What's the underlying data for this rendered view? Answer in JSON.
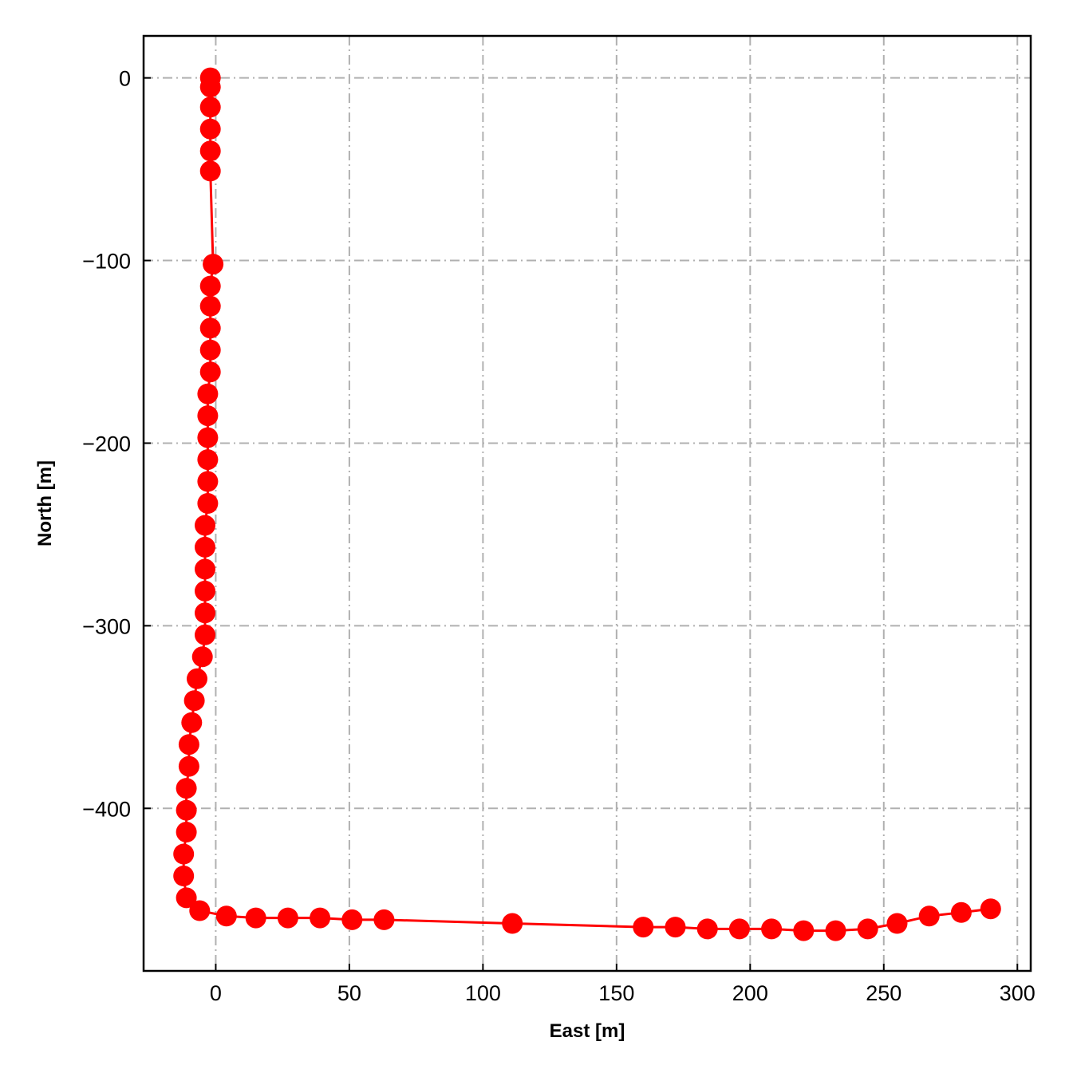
{
  "chart_data": {
    "type": "line",
    "title": "",
    "xlabel": "East [m]",
    "ylabel": "North [m]",
    "xlim": [
      -27,
      305
    ],
    "ylim": [
      -489,
      23
    ],
    "xticks": [
      0,
      50,
      100,
      150,
      200,
      250,
      300
    ],
    "yticks": [
      0,
      -100,
      -200,
      -300,
      -400
    ],
    "xtick_labels": [
      "0",
      "50",
      "100",
      "150",
      "200",
      "250",
      "300"
    ],
    "ytick_labels": [
      "0",
      "−100",
      "−200",
      "−300",
      "−400"
    ],
    "grid": true,
    "legend": "none",
    "series": [
      {
        "color": "#ff0000",
        "marker": "circle",
        "points": [
          [
            -2,
            0
          ],
          [
            -2,
            -5
          ],
          [
            -2,
            -16
          ],
          [
            -2,
            -28
          ],
          [
            -2,
            -40
          ],
          [
            -2,
            -51
          ],
          [
            -1,
            -102
          ],
          [
            -2,
            -114
          ],
          [
            -2,
            -125
          ],
          [
            -2,
            -137
          ],
          [
            -2,
            -149
          ],
          [
            -2,
            -161
          ],
          [
            -3,
            -173
          ],
          [
            -3,
            -185
          ],
          [
            -3,
            -197
          ],
          [
            -3,
            -209
          ],
          [
            -3,
            -221
          ],
          [
            -3,
            -233
          ],
          [
            -4,
            -245
          ],
          [
            -4,
            -257
          ],
          [
            -4,
            -269
          ],
          [
            -4,
            -281
          ],
          [
            -4,
            -293
          ],
          [
            -4,
            -305
          ],
          [
            -5,
            -317
          ],
          [
            -7,
            -329
          ],
          [
            -8,
            -341
          ],
          [
            -9,
            -353
          ],
          [
            -10,
            -365
          ],
          [
            -10,
            -377
          ],
          [
            -11,
            -389
          ],
          [
            -11,
            -401
          ],
          [
            -11,
            -413
          ],
          [
            -12,
            -425
          ],
          [
            -12,
            -437
          ],
          [
            -11,
            -449
          ],
          [
            -6,
            -456
          ],
          [
            4,
            -459
          ],
          [
            15,
            -460
          ],
          [
            27,
            -460
          ],
          [
            39,
            -460
          ],
          [
            51,
            -461
          ],
          [
            63,
            -461
          ],
          [
            111,
            -463
          ],
          [
            160,
            -465
          ],
          [
            172,
            -465
          ],
          [
            184,
            -466
          ],
          [
            196,
            -466
          ],
          [
            208,
            -466
          ],
          [
            220,
            -467
          ],
          [
            232,
            -467
          ],
          [
            244,
            -466
          ],
          [
            255,
            -463
          ],
          [
            267,
            -459
          ],
          [
            279,
            -457
          ],
          [
            290,
            -455
          ]
        ]
      }
    ]
  }
}
